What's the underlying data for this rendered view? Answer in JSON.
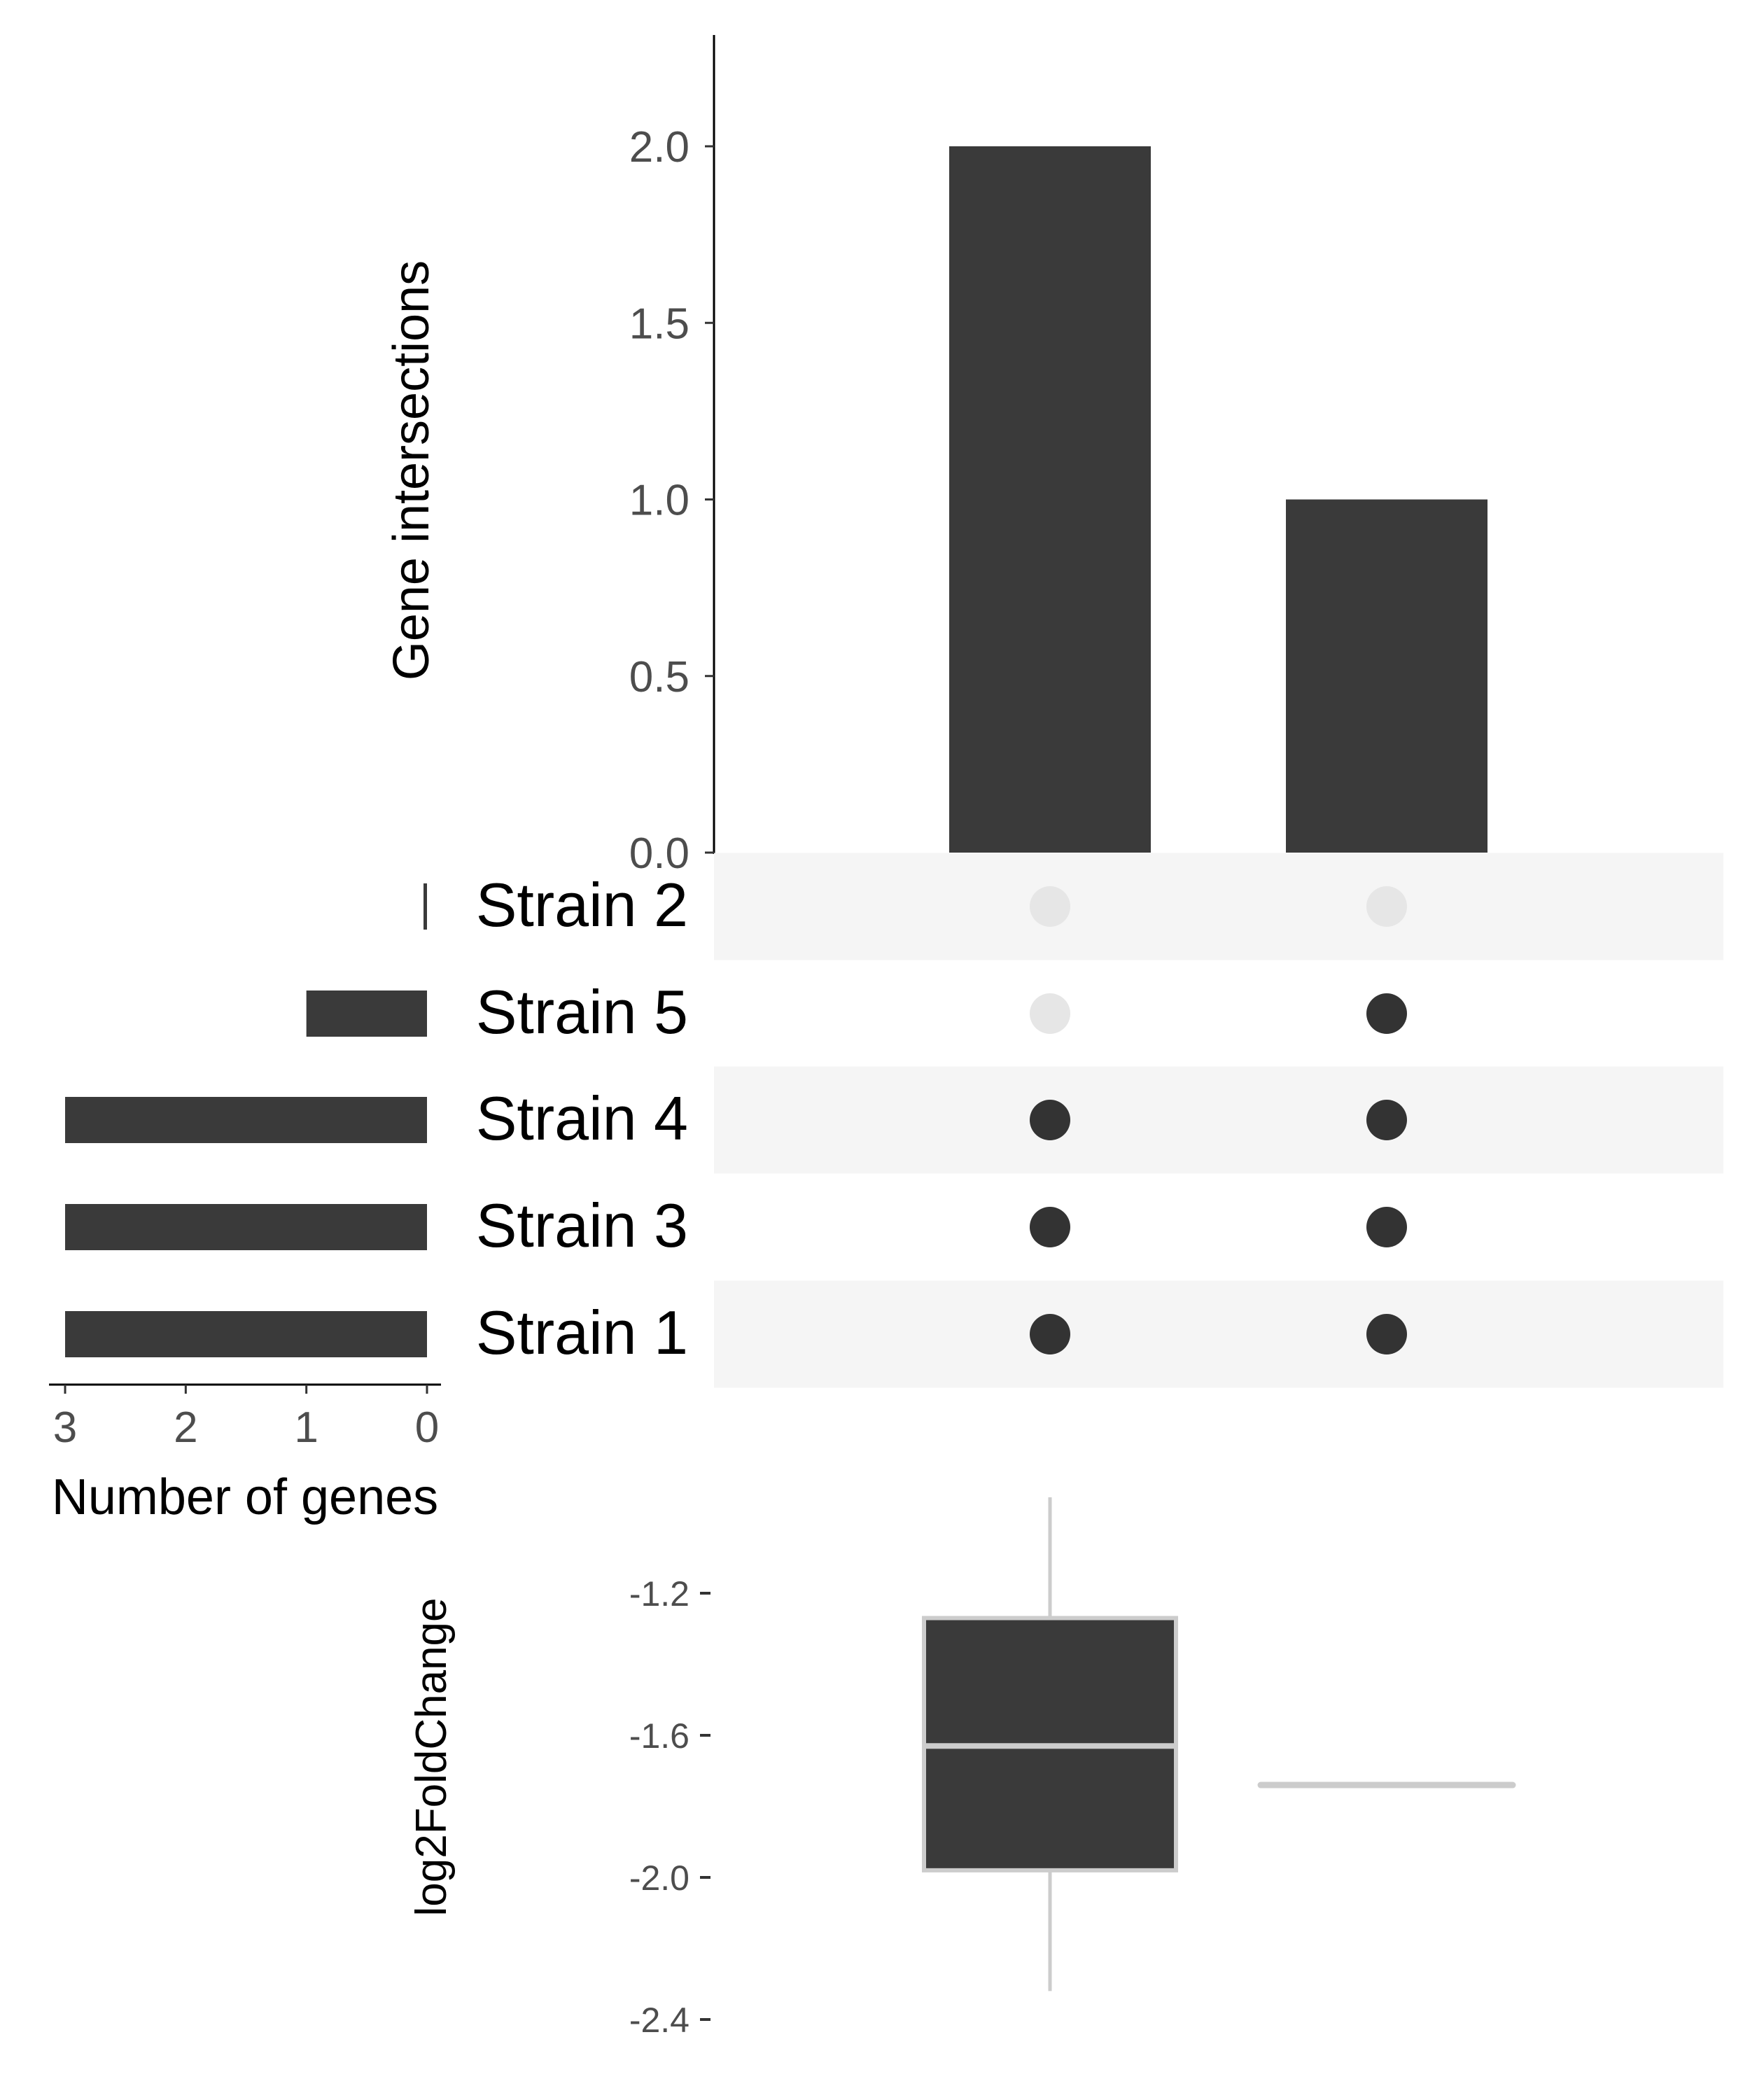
{
  "chart_data": [
    {
      "type": "bar",
      "role": "intersection-size",
      "ylabel": "Gene intersections",
      "ylim": [
        0,
        2.3
      ],
      "yticks": [
        "0.0",
        "0.5",
        "1.0",
        "1.5",
        "2.0"
      ],
      "intersections": [
        {
          "sets": [
            "Strain 4",
            "Strain 3",
            "Strain 1"
          ],
          "value": 2
        },
        {
          "sets": [
            "Strain 5",
            "Strain 4",
            "Strain 3",
            "Strain 1"
          ],
          "value": 1
        }
      ]
    },
    {
      "type": "bar",
      "orientation": "horizontal",
      "role": "set-size",
      "xlabel": "Number of genes",
      "xticks": [
        "3",
        "2",
        "1",
        "0"
      ],
      "categories": [
        "Strain 2",
        "Strain 5",
        "Strain 4",
        "Strain 3",
        "Strain 1"
      ],
      "values": [
        0,
        1,
        3,
        3,
        3
      ]
    },
    {
      "type": "box",
      "role": "log2FoldChange-distribution",
      "ylabel": "log2FoldChange",
      "yticks": [
        "-1.2",
        "-1.6",
        "-2.0",
        "-2.4"
      ],
      "ylim": [
        -2.43,
        -0.98
      ],
      "boxes": [
        {
          "min": -2.32,
          "q1": -1.98,
          "median": -1.63,
          "q3": -1.27,
          "max": -0.93
        },
        {
          "min": -1.74,
          "q1": -1.74,
          "median": -1.74,
          "q3": -1.74,
          "max": -1.74
        }
      ]
    }
  ],
  "colors": {
    "bar": "#3a3a3a",
    "dot_active": "#333333",
    "dot_inactive": "#e6e6e6",
    "stripe": "#f5f5f5",
    "box_outline": "#cccccc",
    "axis_text": "#4d4d4d"
  }
}
